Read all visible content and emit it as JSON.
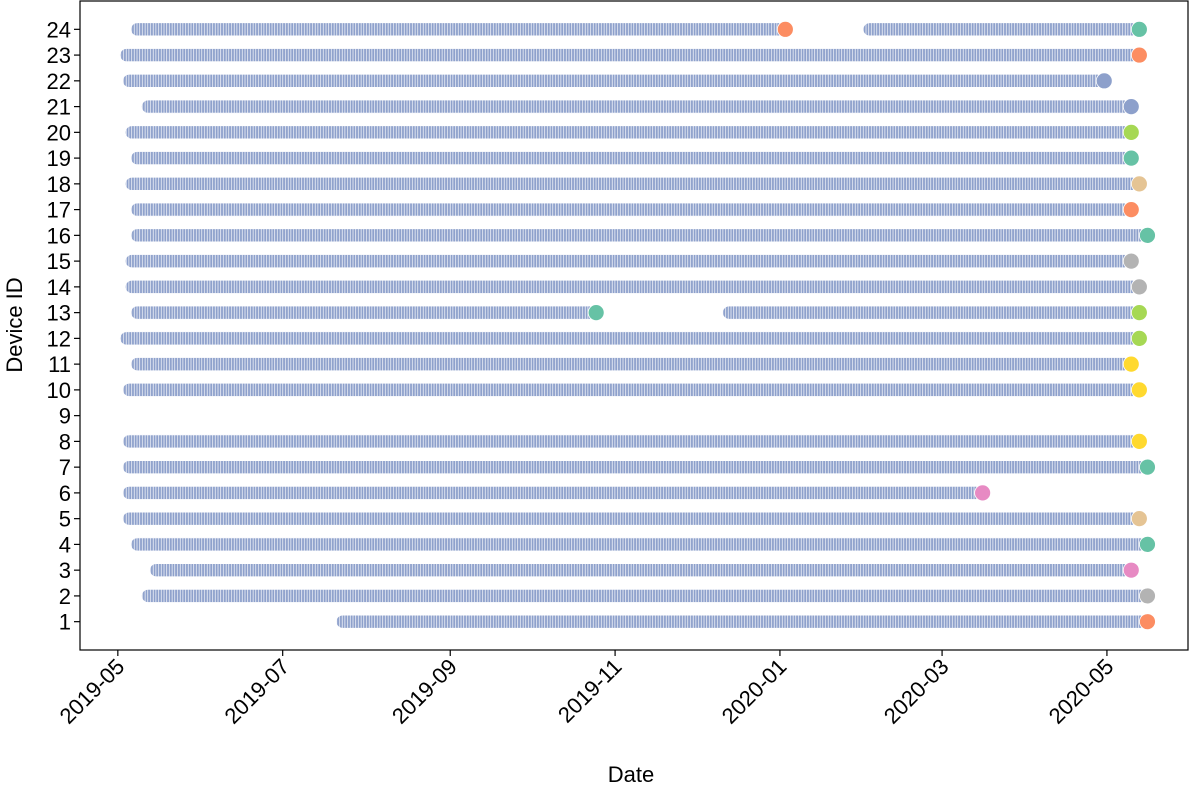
{
  "chart_data": {
    "type": "timeline",
    "x_label": "Date",
    "y_label": "Device ID",
    "xlim": [
      "2019-04-17",
      "2020-05-31"
    ],
    "xticks": [
      "2019-05",
      "2019-07",
      "2019-09",
      "2019-11",
      "2020-01",
      "2020-03",
      "2020-05"
    ],
    "ylim": [
      -0.1,
      25.1
    ],
    "yticks": [
      1,
      2,
      3,
      4,
      5,
      6,
      7,
      8,
      9,
      10,
      11,
      12,
      13,
      14,
      15,
      16,
      17,
      18,
      19,
      20,
      21,
      22,
      23,
      24
    ],
    "segment_color": "#8da0cb",
    "devices": [
      {
        "id": 24,
        "segments": [
          {
            "start": "2019-05-08",
            "end": "2020-01-03",
            "end_color": "#fc8d62"
          },
          {
            "start": "2020-02-03",
            "end": "2020-05-13",
            "end_color": "#66c2a5"
          }
        ]
      },
      {
        "id": 23,
        "segments": [
          {
            "start": "2019-05-04",
            "end": "2020-05-13",
            "end_color": "#fc8d62"
          }
        ]
      },
      {
        "id": 22,
        "segments": [
          {
            "start": "2019-05-05",
            "end": "2020-04-30",
            "end_color": "#8da0cb"
          }
        ]
      },
      {
        "id": 21,
        "segments": [
          {
            "start": "2019-05-12",
            "end": "2020-05-10",
            "end_color": "#8da0cb"
          }
        ]
      },
      {
        "id": 20,
        "segments": [
          {
            "start": "2019-05-06",
            "end": "2020-05-10",
            "end_color": "#a6d854"
          }
        ]
      },
      {
        "id": 19,
        "segments": [
          {
            "start": "2019-05-08",
            "end": "2020-05-10",
            "end_color": "#66c2a5"
          }
        ]
      },
      {
        "id": 18,
        "segments": [
          {
            "start": "2019-05-06",
            "end": "2020-05-13",
            "end_color": "#e5c494"
          }
        ]
      },
      {
        "id": 17,
        "segments": [
          {
            "start": "2019-05-08",
            "end": "2020-05-10",
            "end_color": "#fc8d62"
          }
        ]
      },
      {
        "id": 16,
        "segments": [
          {
            "start": "2019-05-08",
            "end": "2020-05-16",
            "end_color": "#66c2a5"
          }
        ]
      },
      {
        "id": 15,
        "segments": [
          {
            "start": "2019-05-06",
            "end": "2020-05-10",
            "end_color": "#b3b3b3"
          }
        ]
      },
      {
        "id": 14,
        "segments": [
          {
            "start": "2019-05-06",
            "end": "2020-05-13",
            "end_color": "#b3b3b3"
          }
        ]
      },
      {
        "id": 13,
        "segments": [
          {
            "start": "2019-05-08",
            "end": "2019-10-25",
            "end_color": "#66c2a5"
          },
          {
            "start": "2019-12-13",
            "end": "2020-05-13",
            "end_color": "#a6d854"
          }
        ]
      },
      {
        "id": 12,
        "segments": [
          {
            "start": "2019-05-04",
            "end": "2020-05-13",
            "end_color": "#a6d854"
          }
        ]
      },
      {
        "id": 11,
        "segments": [
          {
            "start": "2019-05-08",
            "end": "2020-05-10",
            "end_color": "#ffd92f"
          }
        ]
      },
      {
        "id": 10,
        "segments": [
          {
            "start": "2019-05-05",
            "end": "2020-05-13",
            "end_color": "#ffd92f"
          }
        ]
      },
      {
        "id": 8,
        "segments": [
          {
            "start": "2019-05-05",
            "end": "2020-05-13",
            "end_color": "#ffd92f"
          }
        ]
      },
      {
        "id": 7,
        "segments": [
          {
            "start": "2019-05-05",
            "end": "2020-05-16",
            "end_color": "#66c2a5"
          }
        ]
      },
      {
        "id": 6,
        "segments": [
          {
            "start": "2019-05-05",
            "end": "2020-03-16",
            "end_color": "#e78ac3"
          }
        ]
      },
      {
        "id": 5,
        "segments": [
          {
            "start": "2019-05-05",
            "end": "2020-05-13",
            "end_color": "#e5c494"
          }
        ]
      },
      {
        "id": 4,
        "segments": [
          {
            "start": "2019-05-08",
            "end": "2020-05-16",
            "end_color": "#66c2a5"
          }
        ]
      },
      {
        "id": 3,
        "segments": [
          {
            "start": "2019-05-15",
            "end": "2020-05-10",
            "end_color": "#e78ac3"
          }
        ]
      },
      {
        "id": 2,
        "segments": [
          {
            "start": "2019-05-12",
            "end": "2020-05-16",
            "end_color": "#b3b3b3"
          }
        ]
      },
      {
        "id": 1,
        "segments": [
          {
            "start": "2019-07-23",
            "end": "2020-05-16",
            "end_color": "#fc8d62"
          }
        ]
      }
    ]
  }
}
